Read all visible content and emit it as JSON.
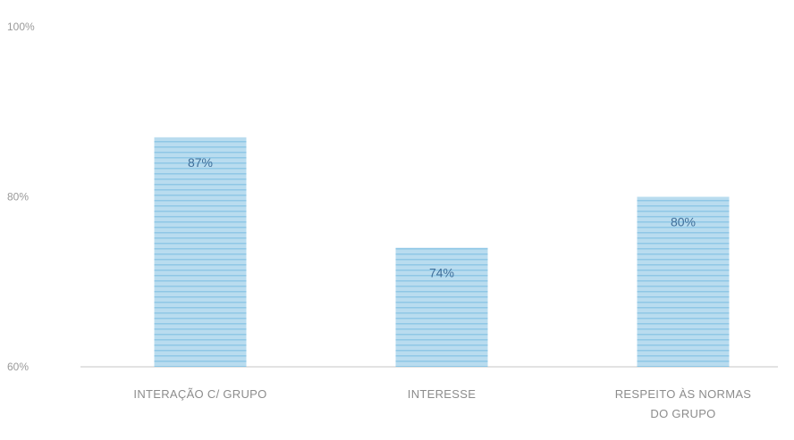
{
  "chart_data": {
    "type": "bar",
    "categories": [
      [
        "INTERAÇÃO C/ GRUPO"
      ],
      [
        "INTERESSE"
      ],
      [
        "RESPEITO ÀS NORMAS",
        "DO GRUPO"
      ]
    ],
    "values": [
      87,
      74,
      80
    ],
    "data_labels": [
      "87%",
      "74%",
      "80%"
    ],
    "y_ticks": [
      {
        "value": 100,
        "label": "100%"
      },
      {
        "value": 80,
        "label": "80%"
      },
      {
        "value": 60,
        "label": "60%"
      }
    ],
    "ylim": [
      60,
      100
    ],
    "bar_color": "#b9dcef",
    "bar_stripe_color": "#8fc7e6",
    "label_color": "#3f6f9a",
    "axis_color": "#d9d9d9",
    "grid": false,
    "legend": "none"
  }
}
